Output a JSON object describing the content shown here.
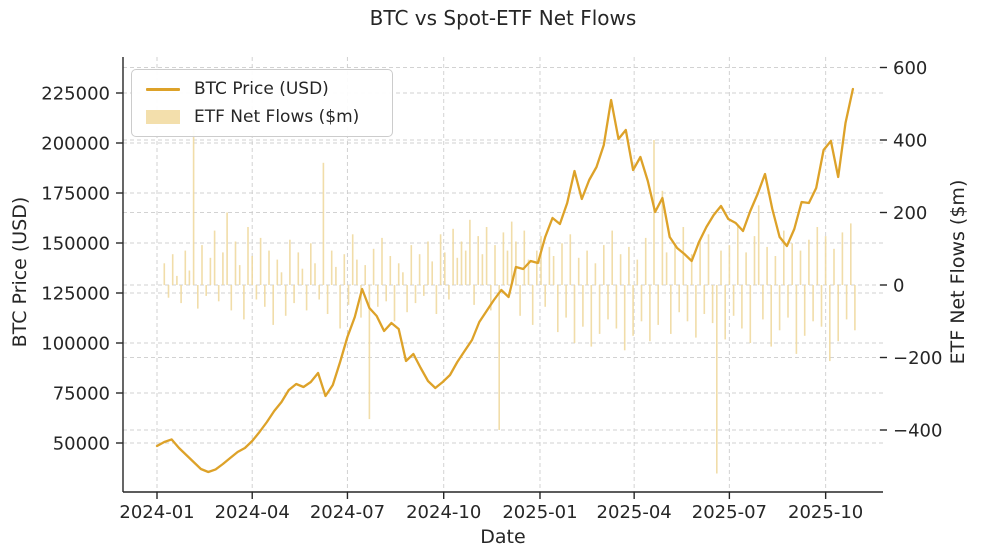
{
  "figure": {
    "title": "BTC vs Spot-ETF Net Flows"
  },
  "colors": {
    "line": "#DDA229",
    "bars": "#EFD9A0",
    "legend_patch": "#F3DFAC",
    "grid": "#cbcbcb",
    "spine": "#262626",
    "text": "#262626",
    "background": "#ffffff"
  },
  "chart_data": {
    "type": "combo",
    "title": "BTC vs Spot-ETF Net Flows",
    "xlabel": "Date",
    "ylabel_left": "BTC Price (USD)",
    "ylabel_right": "ETF Net Flows ($m)",
    "x_tick_labels": [
      "2024-01",
      "2024-04",
      "2024-07",
      "2024-10",
      "2025-01",
      "2025-04",
      "2025-07",
      "2025-10"
    ],
    "y_ticks_left": [
      50000,
      75000,
      100000,
      125000,
      150000,
      175000,
      200000,
      225000
    ],
    "y_ticks_right": [
      -400,
      -200,
      0,
      200,
      400,
      600
    ],
    "ylim_left": [
      25500,
      243000
    ],
    "ylim_right": [
      -571,
      629
    ],
    "xlim": [
      "2023-11-29",
      "2025-11-22"
    ],
    "grid": "dashed gridlines for x ticks and both y axes",
    "legend": {
      "position": "upper left",
      "items": [
        {
          "label": "BTC Price (USD)",
          "marker": "line",
          "color": "#DDA229"
        },
        {
          "label": "ETF Net Flows ($m)",
          "marker": "patch",
          "color": "#F3DFAC"
        }
      ]
    },
    "series": [
      {
        "name": "BTC Price (USD)",
        "axis": "left",
        "type": "line",
        "color": "#DDA229",
        "sampling": "weekly values read from chart",
        "dates": [
          "2024-01-01",
          "2024-01-08",
          "2024-01-15",
          "2024-01-22",
          "2024-01-29",
          "2024-02-05",
          "2024-02-12",
          "2024-02-19",
          "2024-02-26",
          "2024-03-04",
          "2024-03-11",
          "2024-03-18",
          "2024-03-25",
          "2024-04-01",
          "2024-04-08",
          "2024-04-15",
          "2024-04-22",
          "2024-04-29",
          "2024-05-06",
          "2024-05-13",
          "2024-05-20",
          "2024-05-27",
          "2024-06-03",
          "2024-06-10",
          "2024-06-17",
          "2024-06-24",
          "2024-07-01",
          "2024-07-08",
          "2024-07-15",
          "2024-07-22",
          "2024-07-29",
          "2024-08-05",
          "2024-08-12",
          "2024-08-19",
          "2024-08-26",
          "2024-09-02",
          "2024-09-09",
          "2024-09-16",
          "2024-09-23",
          "2024-09-30",
          "2024-10-07",
          "2024-10-14",
          "2024-10-21",
          "2024-10-28",
          "2024-11-04",
          "2024-11-11",
          "2024-11-18",
          "2024-11-25",
          "2024-12-02",
          "2024-12-09",
          "2024-12-16",
          "2024-12-23",
          "2024-12-30",
          "2025-01-06",
          "2025-01-13",
          "2025-01-20",
          "2025-01-27",
          "2025-02-03",
          "2025-02-10",
          "2025-02-17",
          "2025-02-24",
          "2025-03-03",
          "2025-03-10",
          "2025-03-17",
          "2025-03-24",
          "2025-03-31",
          "2025-04-07",
          "2025-04-14",
          "2025-04-21",
          "2025-04-28",
          "2025-05-05",
          "2025-05-12",
          "2025-05-19",
          "2025-05-26",
          "2025-06-02",
          "2025-06-09",
          "2025-06-16",
          "2025-06-23",
          "2025-06-30",
          "2025-07-07",
          "2025-07-14",
          "2025-07-21",
          "2025-07-28",
          "2025-08-04",
          "2025-08-11",
          "2025-08-18",
          "2025-08-25",
          "2025-09-01",
          "2025-09-08",
          "2025-09-15",
          "2025-09-22",
          "2025-09-29",
          "2025-10-06",
          "2025-10-13",
          "2025-10-20",
          "2025-10-27"
        ],
        "values": [
          48500,
          50500,
          51800,
          47500,
          44000,
          40500,
          37000,
          35500,
          36800,
          39500,
          42500,
          45500,
          47500,
          51000,
          55500,
          60500,
          66000,
          70500,
          76500,
          79500,
          78000,
          80500,
          85000,
          73500,
          79000,
          90500,
          103000,
          113000,
          127000,
          117500,
          113500,
          106000,
          110000,
          107000,
          91000,
          94500,
          87500,
          81000,
          77500,
          80500,
          84000,
          90500,
          96000,
          101500,
          110500,
          116000,
          121500,
          126500,
          123000,
          138000,
          137000,
          141000,
          140000,
          153000,
          162500,
          159500,
          170000,
          186000,
          172000,
          181500,
          188000,
          199000,
          221500,
          202000,
          206500,
          186500,
          193000,
          181000,
          165500,
          172500,
          153000,
          147500,
          144500,
          141000,
          150500,
          158000,
          164000,
          168500,
          162000,
          160000,
          156000,
          166000,
          174500,
          184500,
          167000,
          153000,
          148500,
          157000,
          170500,
          170000,
          177500,
          196500,
          201000,
          183000,
          210000,
          227000
        ]
      },
      {
        "name": "ETF Net Flows ($m)",
        "axis": "right",
        "type": "bar",
        "color": "#EFD9A0",
        "sampling": "~4-day bins read from chart",
        "start_date": "2024-01-08",
        "step_days": 4,
        "values": [
          60,
          -35,
          85,
          25,
          -50,
          95,
          40,
          430,
          -65,
          110,
          -30,
          75,
          150,
          -45,
          90,
          200,
          -70,
          120,
          55,
          -95,
          160,
          80,
          -40,
          130,
          -60,
          95,
          -110,
          70,
          35,
          -85,
          125,
          -50,
          90,
          45,
          -70,
          115,
          60,
          -40,
          337,
          -80,
          95,
          50,
          -120,
          85,
          -55,
          140,
          70,
          -90,
          55,
          -370,
          100,
          -60,
          130,
          -45,
          80,
          -100,
          60,
          35,
          -75,
          110,
          -50,
          85,
          -30,
          120,
          65,
          -80,
          140,
          90,
          -40,
          155,
          75,
          120,
          95,
          180,
          -55,
          135,
          85,
          160,
          -70,
          110,
          -400,
          145,
          95,
          175,
          120,
          -85,
          150,
          70,
          -110,
          95,
          135,
          -60,
          105,
          80,
          -130,
          115,
          -90,
          140,
          -160,
          75,
          -115,
          95,
          -170,
          60,
          -135,
          110,
          -95,
          150,
          -120,
          85,
          -180,
          105,
          -140,
          70,
          -100,
          130,
          -155,
          400,
          -110,
          260,
          90,
          -135,
          115,
          -75,
          160,
          -100,
          85,
          -145,
          120,
          -80,
          140,
          -105,
          -520,
          95,
          -150,
          110,
          -85,
          165,
          -120,
          90,
          -160,
          135,
          220,
          -95,
          105,
          -170,
          80,
          -125,
          150,
          -90,
          115,
          -190,
          95,
          -140,
          125,
          -100,
          160,
          -115,
          135,
          -210,
          100,
          -155,
          145,
          -95,
          170,
          -125
        ]
      }
    ]
  }
}
